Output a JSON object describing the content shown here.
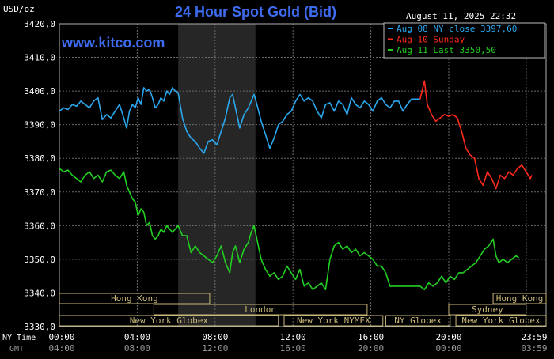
{
  "chart_data": {
    "type": "line",
    "title": "24 Hour Spot Gold (Bid)",
    "unit_label": "USD/oz",
    "brand": "www.kitco.com",
    "timestamp": "August 11, 2025 22:32",
    "ylim": [
      3330,
      3420
    ],
    "y_ticks": [
      3330,
      3340,
      3350,
      3360,
      3370,
      3380,
      3390,
      3400,
      3410,
      3420
    ],
    "y_tick_labels": [
      "3330,0",
      "3340,0",
      "3350,0",
      "3360,0",
      "3370,0",
      "3380,0",
      "3390,0",
      "3400,0",
      "3410,0",
      "3420,0"
    ],
    "x_axis": {
      "row1_label": "NY Time",
      "row2_label": "GMT",
      "ny_ticks": [
        "00:00",
        "04:00",
        "08:00",
        "12:00",
        "16:00",
        "20:00",
        "23:59"
      ],
      "gmt_ticks": [
        "04:00",
        "08:00",
        "12:00",
        "16:00",
        "20:00",
        "00:00",
        "03:59"
      ]
    },
    "grid": true,
    "legend_position": "top-right",
    "legend": [
      {
        "label": "Aug 08 NY close 3397,60",
        "color": "#2aa7ee"
      },
      {
        "label": "Aug 10 Sunday",
        "color": "#ff2a1a"
      },
      {
        "label": "Aug 11 Last 3350,50",
        "color": "#22d022"
      }
    ],
    "shaded_region_hours": [
      8.3,
      13.7
    ],
    "series": [
      {
        "name": "Aug 08 NY close 3397,60",
        "color": "#2aa7ee",
        "points": [
          [
            0,
            3394
          ],
          [
            0.3,
            3395
          ],
          [
            0.6,
            3394.5
          ],
          [
            0.9,
            3396
          ],
          [
            1.2,
            3395.5
          ],
          [
            1.5,
            3397
          ],
          [
            1.8,
            3396
          ],
          [
            2.1,
            3395
          ],
          [
            2.4,
            3397
          ],
          [
            2.7,
            3398
          ],
          [
            3.0,
            3391.5
          ],
          [
            3.3,
            3393
          ],
          [
            3.6,
            3392
          ],
          [
            3.9,
            3394
          ],
          [
            4.2,
            3396
          ],
          [
            4.5,
            3392
          ],
          [
            4.7,
            3389
          ],
          [
            4.9,
            3394
          ],
          [
            5.1,
            3396
          ],
          [
            5.3,
            3395
          ],
          [
            5.5,
            3398
          ],
          [
            5.7,
            3396
          ],
          [
            5.9,
            3401
          ],
          [
            6.1,
            3400
          ],
          [
            6.3,
            3400.5
          ],
          [
            6.5,
            3398
          ],
          [
            6.7,
            3395
          ],
          [
            6.9,
            3396
          ],
          [
            7.1,
            3398
          ],
          [
            7.3,
            3397
          ],
          [
            7.5,
            3400
          ],
          [
            7.7,
            3399
          ],
          [
            7.9,
            3401
          ],
          [
            8.1,
            3400
          ],
          [
            8.3,
            3399.5
          ],
          [
            8.6,
            3392
          ],
          [
            8.9,
            3388
          ],
          [
            9.2,
            3386
          ],
          [
            9.5,
            3385
          ],
          [
            9.8,
            3383
          ],
          [
            10.1,
            3381.5
          ],
          [
            10.4,
            3385
          ],
          [
            10.7,
            3385.5
          ],
          [
            11.0,
            3384
          ],
          [
            11.3,
            3388
          ],
          [
            11.6,
            3392
          ],
          [
            11.9,
            3398
          ],
          [
            12.1,
            3399
          ],
          [
            12.3,
            3395
          ],
          [
            12.6,
            3389
          ],
          [
            12.9,
            3393
          ],
          [
            13.2,
            3395
          ],
          [
            13.4,
            3397
          ],
          [
            13.6,
            3399
          ],
          [
            13.8,
            3396
          ],
          [
            14.1,
            3391
          ],
          [
            14.4,
            3387
          ],
          [
            14.7,
            3383
          ],
          [
            15.0,
            3386
          ],
          [
            15.3,
            3390
          ],
          [
            15.6,
            3391
          ],
          [
            15.9,
            3393
          ],
          [
            16.2,
            3394
          ],
          [
            16.5,
            3397
          ],
          [
            16.8,
            3399
          ],
          [
            17.1,
            3397
          ],
          [
            17.4,
            3398
          ],
          [
            17.7,
            3397
          ],
          [
            18.0,
            3394
          ],
          [
            18.3,
            3392
          ],
          [
            18.6,
            3396
          ],
          [
            18.9,
            3396.5
          ],
          [
            19.2,
            3394
          ],
          [
            19.5,
            3397
          ],
          [
            19.8,
            3396
          ],
          [
            20.1,
            3393
          ],
          [
            20.4,
            3398
          ],
          [
            20.7,
            3396
          ],
          [
            21.0,
            3395
          ],
          [
            21.3,
            3397
          ],
          [
            21.6,
            3396
          ],
          [
            21.9,
            3394
          ],
          [
            22.2,
            3397
          ],
          [
            22.5,
            3398
          ],
          [
            22.8,
            3396
          ],
          [
            23.1,
            3395
          ],
          [
            23.4,
            3397
          ],
          [
            23.7,
            3397
          ],
          [
            24.0,
            3394
          ],
          [
            24.3,
            3396
          ],
          [
            24.6,
            3397.6
          ],
          [
            25.2,
            3397.6
          ]
        ]
      },
      {
        "name": "Aug 10 Sunday",
        "color": "#ff2a1a",
        "points": [
          [
            25.2,
            3397.6
          ],
          [
            25.5,
            3403
          ],
          [
            25.7,
            3396
          ],
          [
            26.0,
            3393
          ],
          [
            26.3,
            3391
          ],
          [
            26.6,
            3392
          ],
          [
            26.9,
            3393
          ],
          [
            27.2,
            3392.5
          ],
          [
            27.5,
            3393
          ],
          [
            27.8,
            3392
          ],
          [
            28.1,
            3388
          ],
          [
            28.4,
            3383
          ],
          [
            28.7,
            3381
          ],
          [
            29.0,
            3380
          ],
          [
            29.3,
            3374
          ],
          [
            29.6,
            3372
          ],
          [
            29.9,
            3376
          ],
          [
            30.2,
            3374
          ],
          [
            30.5,
            3371
          ],
          [
            30.8,
            3375
          ],
          [
            31.1,
            3374
          ],
          [
            31.4,
            3376
          ],
          [
            31.7,
            3375
          ],
          [
            32.0,
            3377
          ],
          [
            32.3,
            3378
          ],
          [
            32.6,
            3376
          ],
          [
            32.9,
            3374
          ],
          [
            33.0,
            3375
          ]
        ]
      },
      {
        "name": "Aug 11 Last 3350,50",
        "color": "#22d022",
        "points": [
          [
            0,
            3377
          ],
          [
            0.3,
            3376
          ],
          [
            0.6,
            3376.5
          ],
          [
            0.9,
            3375
          ],
          [
            1.2,
            3374
          ],
          [
            1.5,
            3373
          ],
          [
            1.8,
            3375
          ],
          [
            2.1,
            3376
          ],
          [
            2.4,
            3374
          ],
          [
            2.7,
            3375
          ],
          [
            3.0,
            3373
          ],
          [
            3.3,
            3376
          ],
          [
            3.6,
            3376.5
          ],
          [
            3.9,
            3375
          ],
          [
            4.2,
            3374
          ],
          [
            4.5,
            3376
          ],
          [
            4.7,
            3372
          ],
          [
            4.9,
            3370
          ],
          [
            5.1,
            3368
          ],
          [
            5.3,
            3367
          ],
          [
            5.5,
            3363
          ],
          [
            5.7,
            3365
          ],
          [
            5.9,
            3364
          ],
          [
            6.1,
            3360
          ],
          [
            6.3,
            3361
          ],
          [
            6.5,
            3357
          ],
          [
            6.7,
            3356
          ],
          [
            6.9,
            3357
          ],
          [
            7.1,
            3359
          ],
          [
            7.3,
            3358
          ],
          [
            7.5,
            3360
          ],
          [
            7.7,
            3359
          ],
          [
            7.9,
            3358
          ],
          [
            8.1,
            3359
          ],
          [
            8.3,
            3360
          ],
          [
            8.6,
            3357
          ],
          [
            8.9,
            3357
          ],
          [
            9.2,
            3352
          ],
          [
            9.5,
            3354
          ],
          [
            9.8,
            3352
          ],
          [
            10.1,
            3351
          ],
          [
            10.4,
            3350
          ],
          [
            10.7,
            3349
          ],
          [
            11.0,
            3351
          ],
          [
            11.3,
            3354
          ],
          [
            11.6,
            3349
          ],
          [
            11.9,
            3346
          ],
          [
            12.1,
            3352
          ],
          [
            12.3,
            3354
          ],
          [
            12.6,
            3349
          ],
          [
            12.9,
            3353
          ],
          [
            13.2,
            3355
          ],
          [
            13.4,
            3358
          ],
          [
            13.6,
            3360
          ],
          [
            13.8,
            3356
          ],
          [
            14.1,
            3350
          ],
          [
            14.4,
            3347
          ],
          [
            14.7,
            3345
          ],
          [
            15.0,
            3346
          ],
          [
            15.3,
            3344
          ],
          [
            15.6,
            3345
          ],
          [
            15.9,
            3348
          ],
          [
            16.2,
            3346
          ],
          [
            16.5,
            3344
          ],
          [
            16.8,
            3347
          ],
          [
            17.1,
            3342
          ],
          [
            17.4,
            3343
          ],
          [
            17.7,
            3341
          ],
          [
            18.0,
            3342
          ],
          [
            18.3,
            3343
          ],
          [
            18.6,
            3341
          ],
          [
            18.9,
            3350
          ],
          [
            19.2,
            3354
          ],
          [
            19.5,
            3355
          ],
          [
            19.8,
            3353
          ],
          [
            20.1,
            3354
          ],
          [
            20.4,
            3352
          ],
          [
            20.7,
            3353
          ],
          [
            21.0,
            3351
          ],
          [
            21.3,
            3352
          ],
          [
            21.6,
            3351
          ],
          [
            21.9,
            3350
          ],
          [
            22.2,
            3348
          ],
          [
            22.5,
            3348
          ],
          [
            22.8,
            3346
          ],
          [
            23.1,
            3342
          ],
          [
            23.4,
            3342
          ],
          [
            23.7,
            3342
          ],
          [
            24.0,
            3342
          ],
          [
            24.3,
            3342
          ],
          [
            24.6,
            3342
          ],
          [
            25.2,
            3342
          ],
          [
            25.5,
            3341
          ],
          [
            25.8,
            3343
          ],
          [
            26.1,
            3342
          ],
          [
            26.4,
            3343
          ],
          [
            26.7,
            3345
          ],
          [
            27.0,
            3343
          ],
          [
            27.3,
            3345
          ],
          [
            27.6,
            3344
          ],
          [
            27.9,
            3346
          ],
          [
            28.2,
            3346
          ],
          [
            28.5,
            3347
          ],
          [
            28.8,
            3348
          ],
          [
            29.1,
            3349
          ],
          [
            29.4,
            3351
          ],
          [
            29.7,
            3353
          ],
          [
            30.0,
            3354
          ],
          [
            30.3,
            3356
          ],
          [
            30.5,
            3351
          ],
          [
            30.7,
            3349
          ],
          [
            31.0,
            3350
          ],
          [
            31.3,
            3349
          ],
          [
            31.6,
            3350
          ],
          [
            31.9,
            3351
          ],
          [
            32.1,
            3350.5
          ]
        ]
      }
    ],
    "markets_row1": [
      {
        "label": "Hong Kong",
        "start": 0,
        "end": 10.5
      },
      {
        "label": "Hong Kong",
        "start": 30.3,
        "end": 34.0
      }
    ],
    "markets_row2": [
      {
        "label": "London",
        "start": 6.6,
        "end": 21.5
      },
      {
        "label": "Sydney",
        "start": 27.2,
        "end": 32.6
      }
    ],
    "markets_row3": [
      {
        "label": "New York Globex",
        "start": 0,
        "end": 15.3
      },
      {
        "label": "New York NYMEX",
        "start": 15.7,
        "end": 22.6
      },
      {
        "label": "NY Globex",
        "start": 22.8,
        "end": 27.3
      },
      {
        "label": "New York Globex",
        "start": 27.7,
        "end": 34.0
      }
    ]
  }
}
